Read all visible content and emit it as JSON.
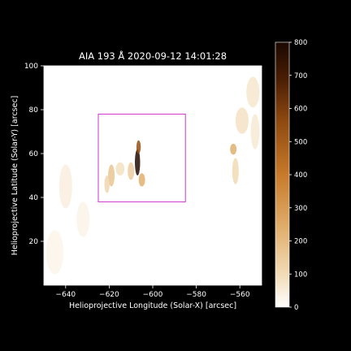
{
  "chart_data": {
    "type": "heatmap",
    "title": "AIA 193 Å 2020-09-12 14:01:28",
    "xlabel": "Helioprojective Longitude (Solar-X) [arcsec]",
    "ylabel": "Helioprojective Latitude (Solar-Y) [arcsec]",
    "xlim": [
      -650,
      -550
    ],
    "ylim": [
      0,
      100
    ],
    "x_ticks": [
      -640,
      -620,
      -600,
      -580,
      -560
    ],
    "y_ticks": [
      20,
      40,
      60,
      80,
      100
    ],
    "colorbar": {
      "range": [
        0,
        800
      ],
      "ticks": [
        0,
        100,
        200,
        300,
        400,
        500,
        600,
        700,
        800
      ],
      "cmap_colors": [
        "#ffffff",
        "#f2dcb8",
        "#e0ae6c",
        "#c87a2a",
        "#8f4a10",
        "#4a1e04",
        "#1a0800"
      ]
    },
    "highlight_box": {
      "color": "#cc33cc",
      "x": [
        -625,
        -585
      ],
      "y": [
        38,
        78
      ]
    },
    "features": [
      {
        "x": -607,
        "y": 56,
        "intensity": 780,
        "sx": 1.2,
        "sy": 6
      },
      {
        "x": -606.5,
        "y": 63,
        "intensity": 520,
        "sx": 1.0,
        "sy": 3
      },
      {
        "x": -605,
        "y": 48,
        "intensity": 260,
        "sx": 1.5,
        "sy": 3
      },
      {
        "x": -610,
        "y": 52,
        "intensity": 180,
        "sx": 1.5,
        "sy": 4
      },
      {
        "x": -619,
        "y": 50,
        "intensity": 200,
        "sx": 1.5,
        "sy": 5
      },
      {
        "x": -621,
        "y": 46,
        "intensity": 150,
        "sx": 1.2,
        "sy": 4
      },
      {
        "x": -615,
        "y": 53,
        "intensity": 120,
        "sx": 2,
        "sy": 3
      },
      {
        "x": -563,
        "y": 62,
        "intensity": 260,
        "sx": 1.5,
        "sy": 2.5
      },
      {
        "x": -562,
        "y": 52,
        "intensity": 140,
        "sx": 1.5,
        "sy": 6
      },
      {
        "x": -559,
        "y": 75,
        "intensity": 110,
        "sx": 3,
        "sy": 6
      },
      {
        "x": -554,
        "y": 88,
        "intensity": 90,
        "sx": 3,
        "sy": 7
      },
      {
        "x": -553,
        "y": 70,
        "intensity": 80,
        "sx": 2,
        "sy": 8
      },
      {
        "x": -640,
        "y": 45,
        "intensity": 60,
        "sx": 3,
        "sy": 10
      },
      {
        "x": -645,
        "y": 15,
        "intensity": 40,
        "sx": 4,
        "sy": 10
      },
      {
        "x": -632,
        "y": 30,
        "intensity": 45,
        "sx": 3,
        "sy": 8
      }
    ]
  }
}
